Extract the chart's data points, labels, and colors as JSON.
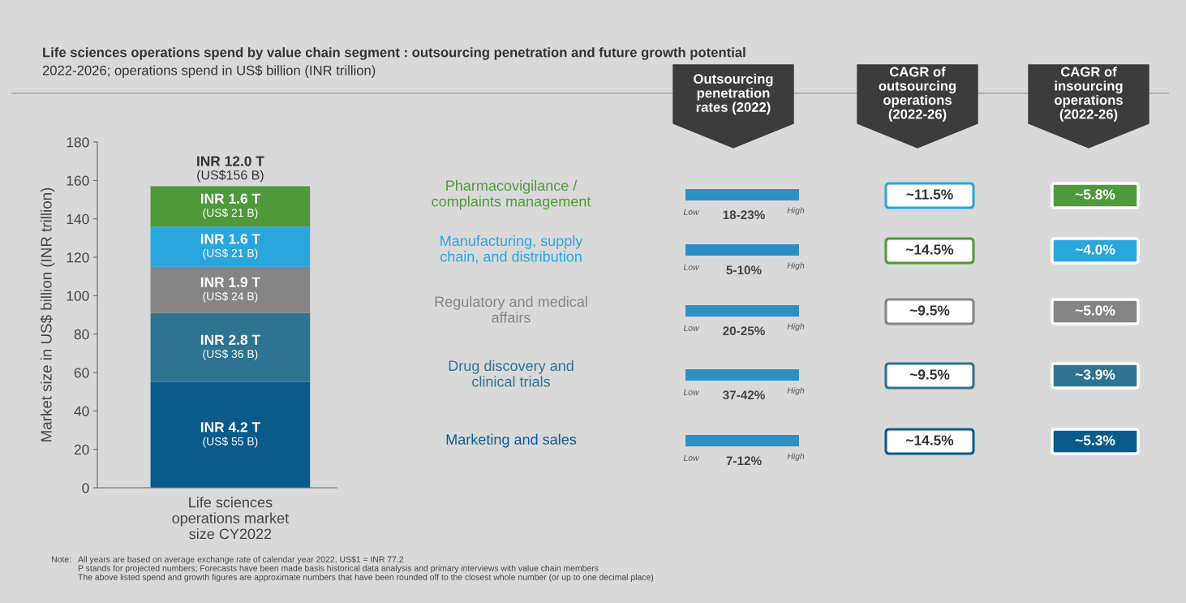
{
  "chart_data": [
    {
      "type": "bar",
      "title": "Life sciences operations spend by value chain segment : outsourcing penetration and future growth potential",
      "subtitle": "2022-2026; operations spend in US$ billion (INR trillion)",
      "ylabel": "Market size in US$ billion (INR trillion)",
      "categories": [
        "Life sciences\noperations market\nsize CY2022"
      ],
      "stacked": true,
      "ylim": [
        0,
        180
      ],
      "yticks": [
        0,
        20,
        40,
        60,
        80,
        100,
        120,
        140,
        160,
        180
      ],
      "grid": false,
      "legend": false,
      "series": [
        {
          "name": "Marketing and sales",
          "color": "#0b5a8c",
          "values": [
            55
          ],
          "value_labels": [
            "INR 4.2 T\n(US$ 55 B)"
          ]
        },
        {
          "name": "Drug discovery and\nclinical trials",
          "color": "#2e7391",
          "values": [
            36
          ],
          "value_labels": [
            "INR 2.8 T\n(US$ 36 B)"
          ]
        },
        {
          "name": "Regulatory and medical\naffairs",
          "color": "#858585",
          "values": [
            24
          ],
          "value_labels": [
            "INR 1.9 T\n(US$ 24 B)"
          ]
        },
        {
          "name": "Manufacturing, supply\nchain, and distribution",
          "color": "#2aa6de",
          "values": [
            21
          ],
          "value_labels": [
            "INR 1.6 T\n(US$ 21 B)"
          ]
        },
        {
          "name": "Pharmacovigilance /\ncomplaints management",
          "color": "#4e9a3a",
          "values": [
            21
          ],
          "value_labels": [
            "INR 1.6 T\n(US$ 21 B)"
          ]
        }
      ],
      "totals": [
        "INR 12.0 T\n(US$156 B)"
      ],
      "annotations": [
        "Note:",
        "All years are based on average exchange rate of calendar year 2022, US$1 = INR 77.2",
        "P stands for projected numbers; Forecasts have been made basis historical data analysis and primary interviews with value chain members",
        "The above listed spend and growth figures are approximate numbers that have been rounded off to the closest whole number (or up to one decimal place)"
      ]
    },
    {
      "type": "other",
      "categories": [
        "Outsourcing\npenetration\nrates (2022)",
        "CAGR of\noutsourcing\noperations\n(2022-26)",
        "CAGR of\ninsourcing\noperations\n(2022-26)"
      ],
      "cell_labels": [
        [
          "18-23%",
          "~11.5%",
          "~5.8%"
        ],
        [
          "5-10%",
          "~14.5%",
          "~4.0%"
        ],
        [
          "20-25%",
          "~9.5%",
          "~5.0%"
        ],
        [
          "37-42%",
          "~9.5%",
          "~3.9%"
        ],
        [
          "7-12%",
          "~14.5%",
          "~5.3%"
        ]
      ],
      "colors": [
        [
          "#2aa6de",
          "#4e9a3a"
        ],
        [
          "#4e9a3a",
          "#2aa6de"
        ],
        [
          "#858585",
          "#858585"
        ],
        [
          "#2e7391",
          "#2e7391"
        ],
        [
          "#0b5a8c",
          "#0b5a8c"
        ]
      ],
      "annotations": [
        "Low",
        "High"
      ]
    }
  ]
}
